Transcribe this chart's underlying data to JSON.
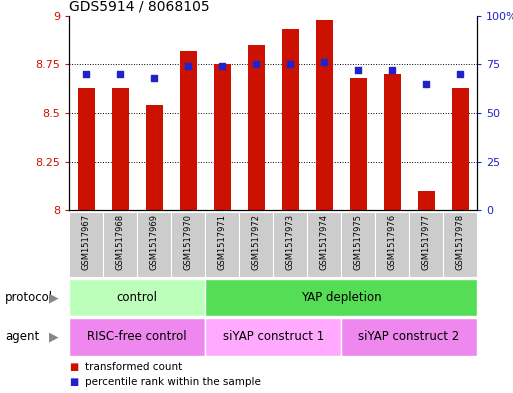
{
  "title": "GDS5914 / 8068105",
  "samples": [
    "GSM1517967",
    "GSM1517968",
    "GSM1517969",
    "GSM1517970",
    "GSM1517971",
    "GSM1517972",
    "GSM1517973",
    "GSM1517974",
    "GSM1517975",
    "GSM1517976",
    "GSM1517977",
    "GSM1517978"
  ],
  "transformed_counts": [
    8.63,
    8.63,
    8.54,
    8.82,
    8.75,
    8.85,
    8.93,
    8.98,
    8.68,
    8.7,
    8.1,
    8.63
  ],
  "percentile_ranks": [
    70,
    70,
    68,
    74,
    74,
    75,
    75,
    76,
    72,
    72,
    65,
    70
  ],
  "ylim_left": [
    8.0,
    9.0
  ],
  "ylim_right": [
    0,
    100
  ],
  "yticks_left": [
    8.0,
    8.25,
    8.5,
    8.75,
    9.0
  ],
  "yticks_right": [
    0,
    25,
    50,
    75,
    100
  ],
  "ytick_labels_left": [
    "8",
    "8.25",
    "8.5",
    "8.75",
    "9"
  ],
  "ytick_labels_right": [
    "0",
    "25",
    "50",
    "75",
    "100%"
  ],
  "bar_color": "#cc1100",
  "dot_color": "#2222cc",
  "protocol_groups": [
    {
      "label": "control",
      "start": 0,
      "end": 3,
      "color": "#bbffbb"
    },
    {
      "label": "YAP depletion",
      "start": 4,
      "end": 11,
      "color": "#55dd55"
    }
  ],
  "agent_groups": [
    {
      "label": "RISC-free control",
      "start": 0,
      "end": 3,
      "color": "#ee88ee"
    },
    {
      "label": "siYAP construct 1",
      "start": 4,
      "end": 7,
      "color": "#ffaaff"
    },
    {
      "label": "siYAP construct 2",
      "start": 8,
      "end": 11,
      "color": "#ee88ee"
    }
  ],
  "legend_red_label": "transformed count",
  "legend_blue_label": "percentile rank within the sample",
  "protocol_label": "protocol",
  "agent_label": "agent",
  "background_color": "#ffffff",
  "bar_width": 0.5,
  "sample_box_color": "#cccccc",
  "title_fontsize": 10
}
